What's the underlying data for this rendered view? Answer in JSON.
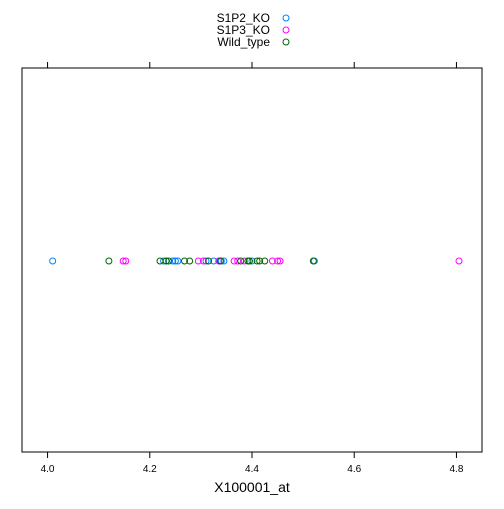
{
  "chart_data": {
    "type": "scatter",
    "title": "",
    "xlabel": "X100001_at",
    "ylabel": "",
    "xlim": [
      3.95,
      4.85
    ],
    "x_ticks": [
      4.0,
      4.2,
      4.4,
      4.6,
      4.8
    ],
    "x_tick_labels": [
      "4.0",
      "4.2",
      "4.4",
      "4.6",
      "4.8"
    ],
    "grid": false,
    "legend_position": "top-center",
    "series": [
      {
        "name": "S1P2_KO",
        "color": "#0080ff",
        "x": [
          4.01,
          4.227,
          4.245,
          4.25,
          4.255,
          4.31,
          4.325,
          4.34,
          4.345,
          4.4,
          4.522
        ]
      },
      {
        "name": "S1P3_KO",
        "color": "#ff00ff",
        "x": [
          4.148,
          4.153,
          4.295,
          4.305,
          4.335,
          4.365,
          4.372,
          4.385,
          4.44,
          4.45,
          4.455,
          4.805
        ]
      },
      {
        "name": "Wild_type",
        "color": "#006400",
        "x": [
          4.12,
          4.22,
          4.232,
          4.237,
          4.268,
          4.278,
          4.315,
          4.338,
          4.378,
          4.392,
          4.395,
          4.41,
          4.415,
          4.425,
          4.52
        ]
      }
    ]
  }
}
